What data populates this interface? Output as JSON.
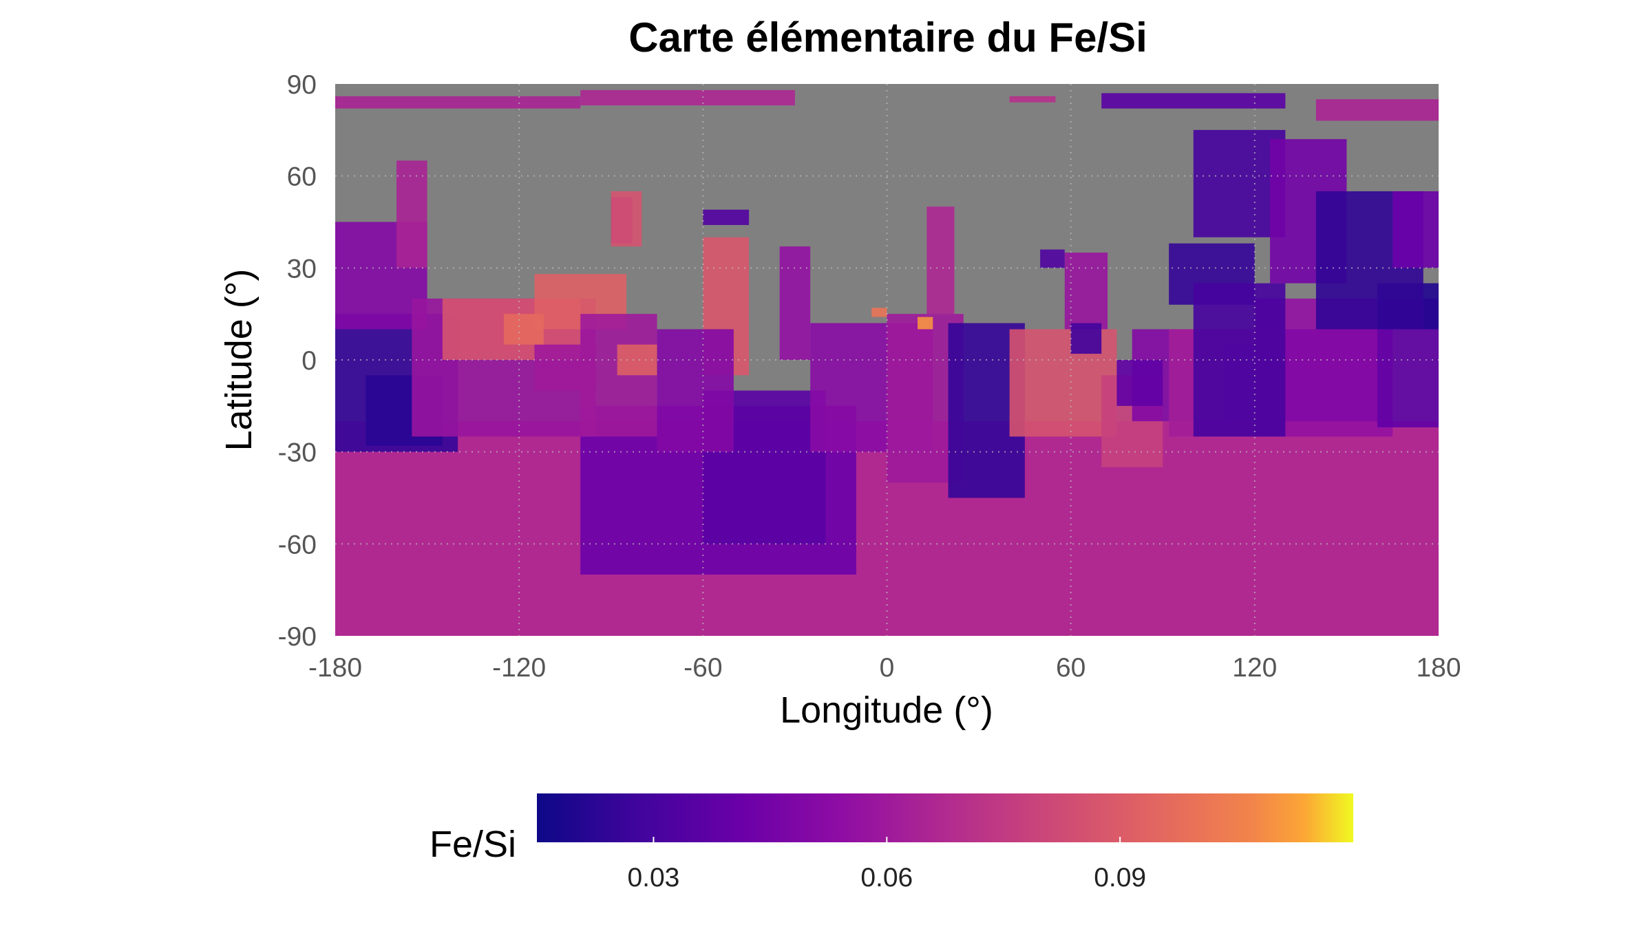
{
  "chart_data": {
    "type": "heatmap",
    "title": "Carte élémentaire du Fe/Si",
    "xlabel": "Longitude (°)",
    "ylabel": "Latitude (°)",
    "xlim": [
      -180,
      180
    ],
    "ylim": [
      -90,
      90
    ],
    "xticks": [
      -180,
      -120,
      -60,
      0,
      60,
      120,
      180
    ],
    "yticks": [
      90,
      60,
      30,
      0,
      -30,
      -60,
      -90
    ],
    "xtick_labels": [
      "-180",
      "-120",
      "-60",
      "0",
      "60",
      "120",
      "180"
    ],
    "ytick_labels": [
      "90",
      "60",
      "30",
      "0",
      "-30",
      "-60",
      "-90"
    ],
    "grid": true,
    "no_data_color": "#808080",
    "colormap": "plasma",
    "colorbar": {
      "label": "Fe/Si",
      "range": [
        0.015,
        0.12
      ],
      "ticks": [
        0.03,
        0.06,
        0.09
      ],
      "tick_labels": [
        "0.03",
        "0.06",
        "0.09"
      ],
      "placement": "bottom"
    },
    "regions": [
      {
        "lon": [
          -180,
          180
        ],
        "lat": [
          -90,
          -20
        ],
        "value": 0.067
      },
      {
        "lon": [
          -100,
          -10
        ],
        "lat": [
          -70,
          -15
        ],
        "value": 0.042
      },
      {
        "lon": [
          -60,
          -20
        ],
        "lat": [
          -60,
          -10
        ],
        "value": 0.036
      },
      {
        "lon": [
          -180,
          -140
        ],
        "lat": [
          -30,
          15
        ],
        "value": 0.025
      },
      {
        "lon": [
          -170,
          -145
        ],
        "lat": [
          -28,
          -5
        ],
        "value": 0.022
      },
      {
        "lon": [
          -180,
          -150
        ],
        "lat": [
          10,
          45
        ],
        "value": 0.05
      },
      {
        "lon": [
          -155,
          -95
        ],
        "lat": [
          -25,
          20
        ],
        "value": 0.058
      },
      {
        "lon": [
          -145,
          -100
        ],
        "lat": [
          0,
          20
        ],
        "value": 0.086
      },
      {
        "lon": [
          -115,
          -85
        ],
        "lat": [
          10,
          28
        ],
        "value": 0.092
      },
      {
        "lon": [
          -100,
          -75
        ],
        "lat": [
          -25,
          15
        ],
        "value": 0.06
      },
      {
        "lon": [
          -60,
          -45
        ],
        "lat": [
          -5,
          40
        ],
        "value": 0.088
      },
      {
        "lon": [
          -75,
          -50
        ],
        "lat": [
          -30,
          10
        ],
        "value": 0.05
      },
      {
        "lon": [
          -35,
          -25
        ],
        "lat": [
          0,
          37
        ],
        "value": 0.056
      },
      {
        "lon": [
          -25,
          15
        ],
        "lat": [
          -30,
          12
        ],
        "value": 0.052
      },
      {
        "lon": [
          0,
          25
        ],
        "lat": [
          -40,
          15
        ],
        "value": 0.06
      },
      {
        "lon": [
          13,
          22
        ],
        "lat": [
          15,
          50
        ],
        "value": 0.066
      },
      {
        "lon": [
          20,
          45
        ],
        "lat": [
          -45,
          12
        ],
        "value": 0.025
      },
      {
        "lon": [
          40,
          75
        ],
        "lat": [
          -25,
          10
        ],
        "value": 0.086
      },
      {
        "lon": [
          70,
          90
        ],
        "lat": [
          -35,
          -5
        ],
        "value": 0.078
      },
      {
        "lon": [
          58,
          72
        ],
        "lat": [
          10,
          35
        ],
        "value": 0.058
      },
      {
        "lon": [
          80,
          100
        ],
        "lat": [
          -20,
          10
        ],
        "value": 0.05
      },
      {
        "lon": [
          75,
          90
        ],
        "lat": [
          -15,
          0
        ],
        "value": 0.038
      },
      {
        "lon": [
          92,
          130
        ],
        "lat": [
          -25,
          10
        ],
        "value": 0.062
      },
      {
        "lon": [
          110,
          130
        ],
        "lat": [
          -20,
          5
        ],
        "value": 0.058
      },
      {
        "lon": [
          120,
          165
        ],
        "lat": [
          -25,
          20
        ],
        "value": 0.056
      },
      {
        "lon": [
          130,
          160
        ],
        "lat": [
          -20,
          10
        ],
        "value": 0.05
      },
      {
        "lon": [
          160,
          180
        ],
        "lat": [
          -22,
          20
        ],
        "value": 0.038
      },
      {
        "lon": [
          92,
          120
        ],
        "lat": [
          18,
          38
        ],
        "value": 0.025
      },
      {
        "lon": [
          100,
          130
        ],
        "lat": [
          -25,
          25
        ],
        "value": 0.03
      },
      {
        "lon": [
          160,
          180
        ],
        "lat": [
          10,
          25
        ],
        "value": 0.02
      },
      {
        "lon": [
          50,
          58
        ],
        "lat": [
          30,
          36
        ],
        "value": 0.033
      },
      {
        "lon": [
          60,
          70
        ],
        "lat": [
          2,
          12
        ],
        "value": 0.028
      },
      {
        "lon": [
          -115,
          -95
        ],
        "lat": [
          -10,
          5
        ],
        "value": 0.06
      },
      {
        "lon": [
          -90,
          -83
        ],
        "lat": [
          38,
          53
        ],
        "value": 0.05
      },
      {
        "lon": [
          -90,
          -80
        ],
        "lat": [
          37,
          55
        ],
        "value": 0.086
      },
      {
        "lon": [
          -60,
          -45
        ],
        "lat": [
          44,
          49
        ],
        "value": 0.034
      },
      {
        "lon": [
          -160,
          -150
        ],
        "lat": [
          30,
          65
        ],
        "value": 0.064
      },
      {
        "lon": [
          -180,
          -100
        ],
        "lat": [
          82,
          86
        ],
        "value": 0.064
      },
      {
        "lon": [
          -100,
          -30
        ],
        "lat": [
          83,
          88
        ],
        "value": 0.066
      },
      {
        "lon": [
          40,
          55
        ],
        "lat": [
          84,
          86
        ],
        "value": 0.07
      },
      {
        "lon": [
          70,
          130
        ],
        "lat": [
          82,
          87
        ],
        "value": 0.036
      },
      {
        "lon": [
          140,
          180
        ],
        "lat": [
          78,
          85
        ],
        "value": 0.065
      },
      {
        "lon": [
          100,
          130
        ],
        "lat": [
          40,
          75
        ],
        "value": 0.03
      },
      {
        "lon": [
          125,
          150
        ],
        "lat": [
          25,
          72
        ],
        "value": 0.044
      },
      {
        "lon": [
          140,
          175
        ],
        "lat": [
          10,
          55
        ],
        "value": 0.024
      },
      {
        "lon": [
          165,
          180
        ],
        "lat": [
          30,
          55
        ],
        "value": 0.042
      },
      {
        "lon": [
          -88,
          -75
        ],
        "lat": [
          -5,
          5
        ],
        "value": 0.092
      },
      {
        "lon": [
          -125,
          -112
        ],
        "lat": [
          5,
          15
        ],
        "value": 0.096
      },
      {
        "lon": [
          10,
          15
        ],
        "lat": [
          10,
          14
        ],
        "value": 0.11
      },
      {
        "lon": [
          -5,
          0
        ],
        "lat": [
          14,
          17
        ],
        "value": 0.1
      }
    ]
  }
}
